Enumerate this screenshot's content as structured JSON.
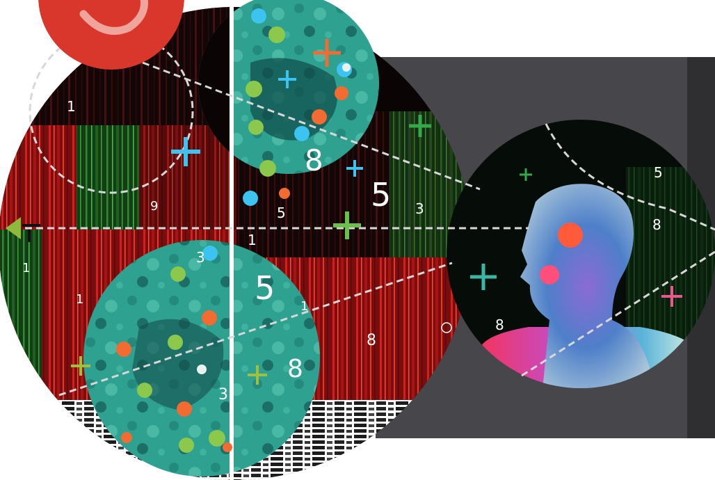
{
  "colors": {
    "badge_red": "#d9372b",
    "panel_grey": "#47464a",
    "panel_dark": "#2f2e31",
    "heatmap_red": "#b01515",
    "heatmap_green": "#1f5a22",
    "tissue_teal": "#2fa394",
    "dot_orange": "#f26b30",
    "dot_green": "#8cc84b",
    "dot_blue": "#3cc3ef",
    "plus_pink": "#e9578f",
    "arrow_green": "#8fb93a"
  },
  "icons": [
    "target-badge-icon",
    "left-arrow-icon",
    "plus-marker-icon",
    "ring-marker-icon",
    "human-head-icon"
  ],
  "labels": {
    "n1": "1",
    "n2": "9",
    "n3": "8",
    "n4": "5",
    "n5": "5",
    "n6": "3",
    "n7": "1",
    "n8": "3",
    "n9": "1",
    "n10": "1",
    "n11": "5",
    "n12": "1",
    "n13": "8",
    "n14": "8",
    "n15": "3",
    "n16": "5",
    "n17": "8",
    "n18": "8"
  }
}
